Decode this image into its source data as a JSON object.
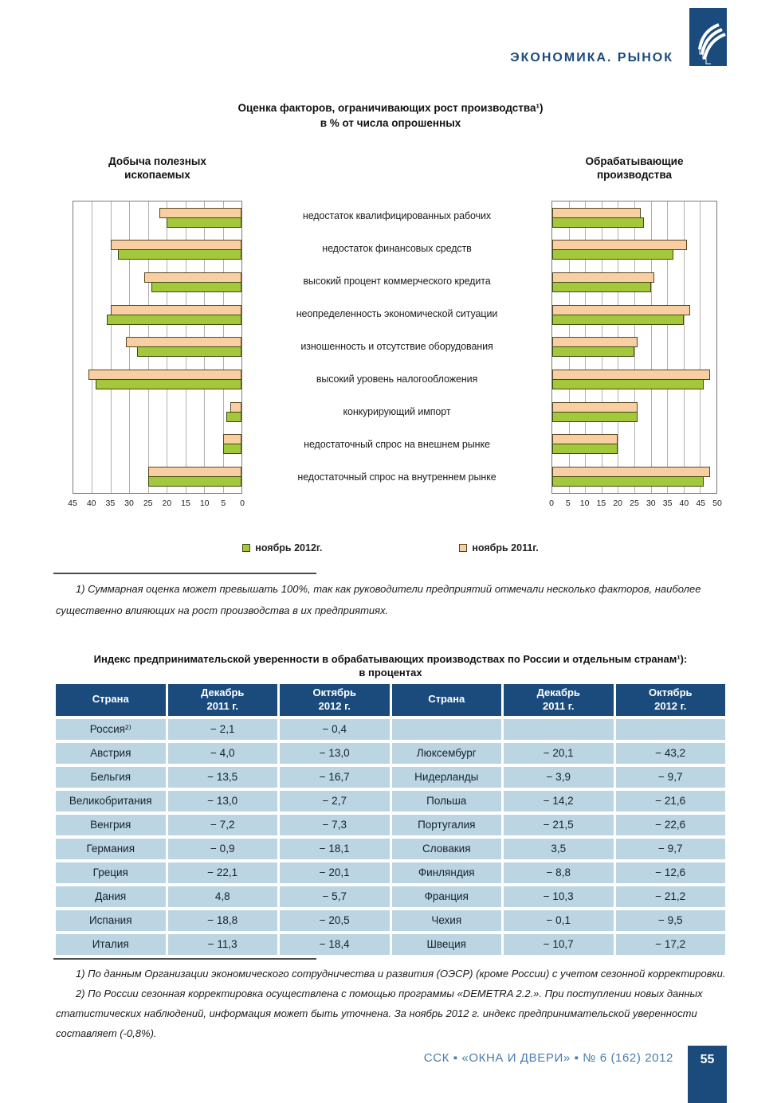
{
  "header": {
    "section_title": "ЭКОНОМИКА. РЫНОК"
  },
  "chart_data": {
    "type": "bar",
    "orientation": "horizontal-grouped",
    "title": "Оценка факторов, ограничивающих рост производства¹)",
    "subtitle": "в % от числа опрошенных",
    "categories": [
      "недостаток квалифицированных рабочих",
      "недостаток финансовых средств",
      "высокий процент коммерческого кредита",
      "неопределенность экономической ситуации",
      "изношенность и отсутствие оборудования",
      "высокий уровень налогообложения",
      "конкурирующий импорт",
      "недостаточный спрос на внешнем рынке",
      "недостаточный спрос на внутреннем рынке"
    ],
    "panels": [
      {
        "title": "Добыча полезных\nископаемых",
        "direction": "rtl",
        "max": 45,
        "axis_ticks": [
          45,
          40,
          35,
          30,
          25,
          20,
          15,
          10,
          5,
          0
        ],
        "series": [
          {
            "name": "ноябрь 2011г.",
            "color": "#f8cfa2",
            "border": "#5a4420",
            "values": [
              22,
              35,
              26,
              35,
              31,
              41,
              3,
              5,
              25
            ]
          },
          {
            "name": "ноябрь 2012г.",
            "color": "#a3c83b",
            "border": "#3f4a12",
            "values": [
              20,
              33,
              24,
              36,
              28,
              39,
              4,
              5,
              25
            ]
          }
        ]
      },
      {
        "title": "Обрабатывающие\nпроизводства",
        "direction": "ltr",
        "max": 50,
        "axis_ticks": [
          0,
          5,
          10,
          15,
          20,
          25,
          30,
          35,
          40,
          45,
          50
        ],
        "series": [
          {
            "name": "ноябрь 2011г.",
            "color": "#f8cfa2",
            "border": "#5a4420",
            "values": [
              27,
              41,
              31,
              42,
              26,
              48,
              26,
              20,
              48
            ]
          },
          {
            "name": "ноябрь 2012г.",
            "color": "#a3c83b",
            "border": "#3f4a12",
            "values": [
              28,
              37,
              30,
              40,
              25,
              46,
              26,
              20,
              46
            ]
          }
        ]
      }
    ],
    "legend": [
      {
        "label": "ноябрь 2012г.",
        "color": "#a3c83b",
        "border": "#3f4a12"
      },
      {
        "label": "ноябрь 2011г.",
        "color": "#f8cfa2",
        "border": "#5a4420"
      }
    ],
    "footnote": "1) Суммарная оценка может превышать 100%, так как руководители предприятий отмечали несколько факторов, наиболее существенно влияющих на рост производства в их предприятиях."
  },
  "table": {
    "title": "Индекс предпринимательской уверенности в обрабатывающих производствах по России и отдельным странам¹):",
    "subtitle": "в процентах",
    "headers": [
      "Страна",
      "Декабрь\n2011 г.",
      "Октябрь\n2012 г.",
      "Страна",
      "Декабрь\n2011 г.",
      "Октябрь\n2012 г."
    ],
    "rows": [
      [
        "Россия²⁾",
        "− 2,1",
        "− 0,4",
        "",
        "",
        ""
      ],
      [
        "Австрия",
        "− 4,0",
        "− 13,0",
        "Люксембург",
        "− 20,1",
        "− 43,2"
      ],
      [
        "Бельгия",
        "− 13,5",
        "− 16,7",
        "Нидерланды",
        "− 3,9",
        "− 9,7"
      ],
      [
        "Великобритания",
        "− 13,0",
        "− 2,7",
        "Польша",
        "− 14,2",
        "− 21,6"
      ],
      [
        "Венгрия",
        "− 7,2",
        "− 7,3",
        "Португалия",
        "− 21,5",
        "− 22,6"
      ],
      [
        "Германия",
        "− 0,9",
        "− 18,1",
        "Словакия",
        "3,5",
        "− 9,7"
      ],
      [
        "Греция",
        "− 22,1",
        "− 20,1",
        "Финляндия",
        "− 8,8",
        "− 12,6"
      ],
      [
        "Дания",
        "4,8",
        "− 5,7",
        "Франция",
        "− 10,3",
        "− 21,2"
      ],
      [
        "Испания",
        "− 18,8",
        "− 20,5",
        "Чехия",
        "− 0,1",
        "− 9,5"
      ],
      [
        "Италия",
        "− 11,3",
        "− 18,4",
        "Швеция",
        "− 10,7",
        "− 17,2"
      ]
    ],
    "footnotes": [
      "1) По данным Организации экономического сотрудничества и развития (ОЭСР) (кроме России) с учетом сезонной корректировки.",
      "2) По России сезонная корректировка осуществлена с помощью программы «DEMETRA 2.2.». При поступлении новых данных статистических наблюдений, информация может быть уточнена. За ноябрь 2012 г. индекс предпринимательской уверенности составляет (-0,8%)."
    ]
  },
  "footer": {
    "journal_line": "ССК ▪ «ОКНА И ДВЕРИ» ▪ № 6 (162) 2012",
    "page_number": "55"
  },
  "colors": {
    "navy": "#1b4b7d",
    "footer_blue": "#4a7dab",
    "cell_bg": "#bcd5e2",
    "bar_green": "#a3c83b",
    "bar_tan": "#f8cfa2"
  }
}
